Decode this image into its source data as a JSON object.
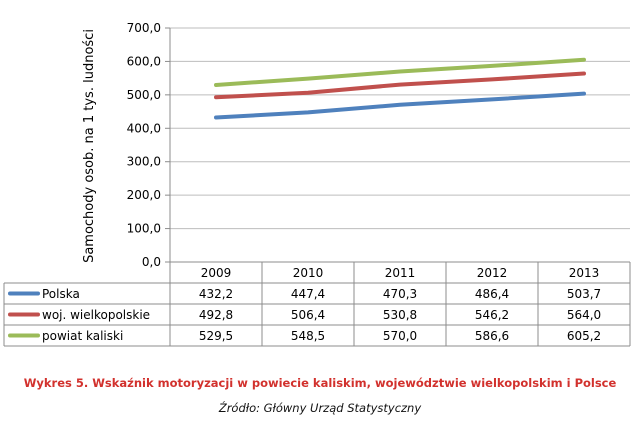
{
  "chart_data": {
    "type": "line",
    "ylabel": "Samochody osob. na 1 tys. ludności",
    "xlabel": "",
    "ylim": [
      0,
      700
    ],
    "yticks": [
      "0,0",
      "100,0",
      "200,0",
      "300,0",
      "400,0",
      "500,0",
      "600,0",
      "700,0"
    ],
    "categories": [
      "2009",
      "2010",
      "2011",
      "2012",
      "2013"
    ],
    "grid": "horizontal",
    "legend": "data-table",
    "series": [
      {
        "name": "Polska",
        "color": "#4f81bd",
        "values": [
          432.2,
          447.4,
          470.3,
          486.4,
          503.7
        ],
        "labels": [
          "432,2",
          "447,4",
          "470,3",
          "486,4",
          "503,7"
        ]
      },
      {
        "name": "woj. wielkopolskie",
        "color": "#c0504d",
        "values": [
          492.8,
          506.4,
          530.8,
          546.2,
          564.0
        ],
        "labels": [
          "492,8",
          "506,4",
          "530,8",
          "546,2",
          "564,0"
        ]
      },
      {
        "name": "powiat kaliski",
        "color": "#9bbb59",
        "values": [
          529.5,
          548.5,
          570.0,
          586.6,
          605.2
        ],
        "labels": [
          "529,5",
          "548,5",
          "570,0",
          "586,6",
          "605,2"
        ]
      }
    ]
  },
  "caption": {
    "title": "Wykres 5. Wskaźnik motoryzacji w powiecie kaliskim, województwie wielkopolskim i Polsce",
    "source": "Źródło: Główny Urząd Statystyczny"
  }
}
